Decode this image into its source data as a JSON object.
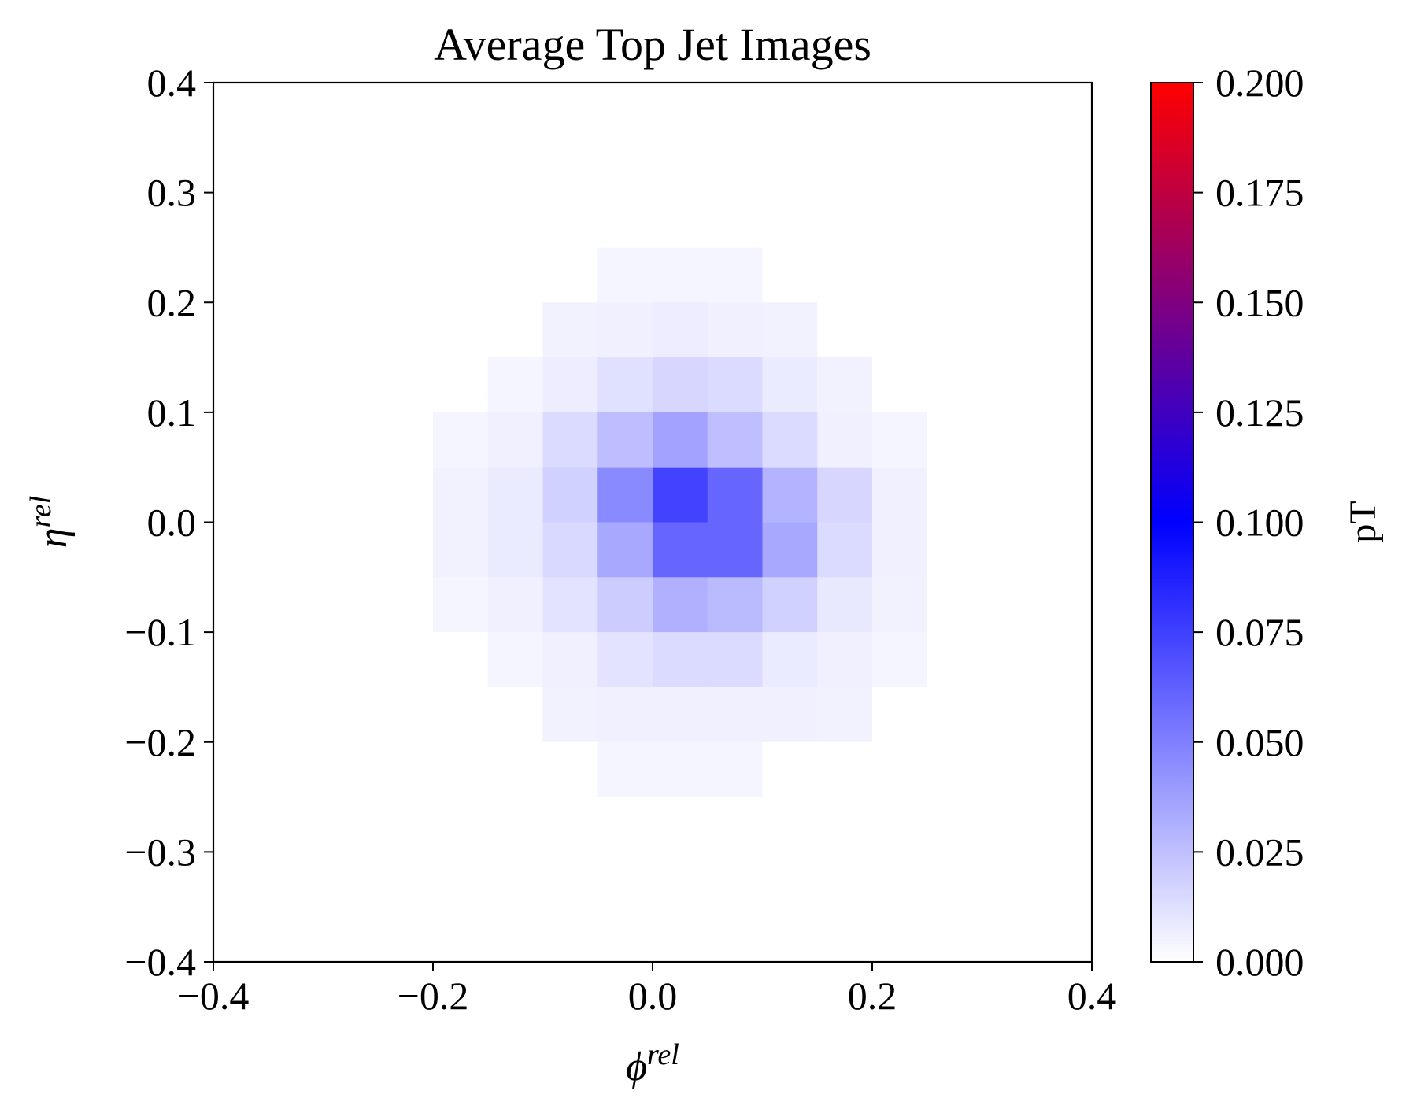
{
  "chart_data": {
    "type": "heatmap",
    "title": "Average Top Jet Images",
    "xlabel": {
      "base": "ϕ",
      "sup": "rel"
    },
    "ylabel": {
      "base": "η",
      "sup": "rel"
    },
    "xlim": [
      -0.4,
      0.4
    ],
    "ylim": [
      -0.4,
      0.4
    ],
    "x_ticks": [
      -0.4,
      -0.2,
      0.0,
      0.2,
      0.4
    ],
    "x_tick_labels": [
      "−0.4",
      "−0.2",
      "0.0",
      "0.2",
      "0.4"
    ],
    "y_ticks": [
      -0.4,
      -0.3,
      -0.2,
      -0.1,
      0.0,
      0.1,
      0.2,
      0.3,
      0.4
    ],
    "y_tick_labels": [
      "−0.4",
      "−0.3",
      "−0.2",
      "−0.1",
      "0.0",
      "0.1",
      "0.2",
      "0.3",
      "0.4"
    ],
    "grid": false,
    "bins": 16,
    "bin_width": 0.05,
    "x_bin_edges_start": -0.4,
    "y_bin_edges_start": -0.4,
    "value_rows_top_to_bottom": [
      [
        0,
        0,
        0,
        0,
        0,
        0,
        0,
        0,
        0,
        0,
        0,
        0,
        0,
        0,
        0,
        0
      ],
      [
        0,
        0,
        0,
        0,
        0,
        0,
        0,
        0,
        0,
        0,
        0,
        0,
        0,
        0,
        0,
        0
      ],
      [
        0,
        0,
        0,
        0,
        0,
        0,
        0,
        0,
        0,
        0,
        0,
        0,
        0,
        0,
        0,
        0
      ],
      [
        0,
        0,
        0,
        0,
        0,
        0,
        0,
        0.004,
        0.004,
        0.004,
        0,
        0,
        0,
        0,
        0,
        0
      ],
      [
        0,
        0,
        0,
        0,
        0,
        0,
        0.005,
        0.006,
        0.007,
        0.006,
        0.005,
        0,
        0,
        0,
        0,
        0
      ],
      [
        0,
        0,
        0,
        0,
        0,
        0.004,
        0.007,
        0.012,
        0.016,
        0.014,
        0.008,
        0.005,
        0,
        0,
        0,
        0
      ],
      [
        0,
        0,
        0,
        0,
        0.004,
        0.006,
        0.014,
        0.026,
        0.036,
        0.025,
        0.014,
        0.006,
        0.004,
        0,
        0,
        0
      ],
      [
        0,
        0,
        0,
        0,
        0.005,
        0.008,
        0.018,
        0.046,
        0.074,
        0.06,
        0.03,
        0.016,
        0.006,
        0,
        0,
        0
      ],
      [
        0,
        0,
        0,
        0,
        0.005,
        0.008,
        0.015,
        0.034,
        0.06,
        0.06,
        0.034,
        0.014,
        0.006,
        0,
        0,
        0
      ],
      [
        0,
        0,
        0,
        0,
        0.004,
        0.006,
        0.011,
        0.02,
        0.031,
        0.027,
        0.018,
        0.009,
        0.005,
        0,
        0,
        0
      ],
      [
        0,
        0,
        0,
        0,
        0,
        0.004,
        0.006,
        0.011,
        0.014,
        0.014,
        0.008,
        0.006,
        0.004,
        0,
        0,
        0
      ],
      [
        0,
        0,
        0,
        0,
        0,
        0,
        0.005,
        0.006,
        0.006,
        0.006,
        0.006,
        0.005,
        0,
        0,
        0,
        0
      ],
      [
        0,
        0,
        0,
        0,
        0,
        0,
        0,
        0.004,
        0.004,
        0.004,
        0,
        0,
        0,
        0,
        0,
        0
      ],
      [
        0,
        0,
        0,
        0,
        0,
        0,
        0,
        0,
        0,
        0,
        0,
        0,
        0,
        0,
        0,
        0
      ],
      [
        0,
        0,
        0,
        0,
        0,
        0,
        0,
        0,
        0,
        0,
        0,
        0,
        0,
        0,
        0,
        0
      ],
      [
        0,
        0,
        0,
        0,
        0,
        0,
        0,
        0,
        0,
        0,
        0,
        0,
        0,
        0,
        0,
        0
      ]
    ],
    "colorbar": {
      "label": "pT",
      "vmin": 0.0,
      "vmax": 0.2,
      "ticks": [
        0.0,
        0.025,
        0.05,
        0.075,
        0.1,
        0.125,
        0.15,
        0.175,
        0.2
      ],
      "tick_labels": [
        "0.000",
        "0.025",
        "0.050",
        "0.075",
        "0.100",
        "0.125",
        "0.150",
        "0.175",
        "0.200"
      ],
      "colormap_stops": [
        {
          "value": 0.0,
          "color": "#ffffff"
        },
        {
          "value": 0.1,
          "color": "#0000ff"
        },
        {
          "value": 0.2,
          "color": "#ff0000"
        }
      ]
    }
  }
}
